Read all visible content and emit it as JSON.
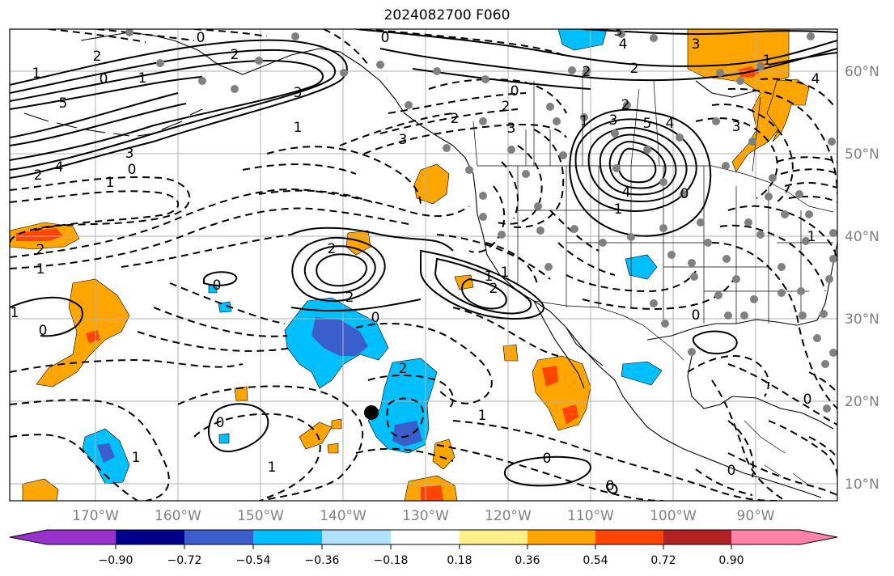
{
  "title": "2024082700 F060",
  "lon_labels": [
    "170°W",
    "160°W",
    "150°W",
    "140°W",
    "130°W",
    "120°W",
    "110°W",
    "100°W",
    "90°W"
  ],
  "lat_labels": [
    "60°N",
    "50°N",
    "40°N",
    "30°N",
    "20°N",
    "10°N"
  ],
  "colorbar": {
    "tick_labels": [
      "−0.90",
      "−0.72",
      "−0.54",
      "−0.36",
      "−0.18",
      "0.18",
      "0.36",
      "0.54",
      "0.72",
      "0.90"
    ],
    "colors": [
      "#9932cc",
      "#00008b",
      "#3a5fcd",
      "#00bfff",
      "#b0e2ff",
      "#ffffff",
      "#fff08c",
      "#ffa500",
      "#ff4500",
      "#b22222",
      "#ff82ab"
    ]
  },
  "contour_labels": {
    "c0": "0",
    "c1": "1",
    "c2": "2",
    "c3": "3",
    "c4": "4",
    "c5": "5",
    "m1": "1",
    "m2": "2",
    "m3": "3",
    "m4": "4"
  },
  "colors": {
    "orange": "#ffa500",
    "red": "#ff4500",
    "cyan": "#00bfff",
    "blue": "#3a5fcd",
    "station": "#808080",
    "grid": "#b0b0b0"
  }
}
